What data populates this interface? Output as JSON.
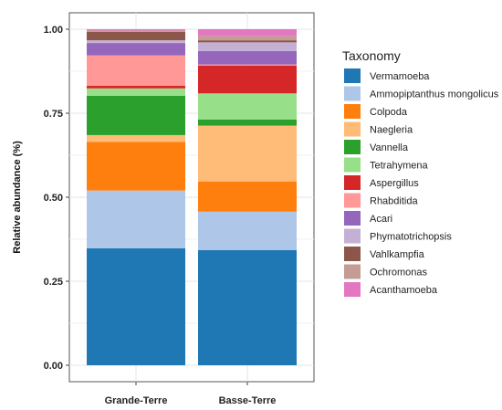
{
  "chart_data": {
    "type": "bar",
    "stacked": true,
    "categories": [
      "Grande-Terre",
      "Basse-Terre"
    ],
    "ylabel": "Relative abundance (%)",
    "xlabel": "",
    "ylim": [
      0,
      1.0
    ],
    "y_ticks": [
      "0.00",
      "0.25",
      "0.50",
      "0.75",
      "1.00"
    ],
    "y_tick_values": [
      0,
      0.25,
      0.5,
      0.75,
      1.0
    ],
    "grid": true,
    "legend": {
      "title": "Taxonomy",
      "position": "right"
    },
    "series": [
      {
        "name": "Vermamoeba",
        "color": "#1f77b4",
        "values": [
          0.348,
          0.343
        ]
      },
      {
        "name": "Ammopiptanthus mongolicus",
        "color": "#aec7e8",
        "values": [
          0.172,
          0.114
        ]
      },
      {
        "name": "Colpoda",
        "color": "#ff7f0e",
        "values": [
          0.145,
          0.09
        ]
      },
      {
        "name": "Naegleria",
        "color": "#ffbb78",
        "values": [
          0.02,
          0.166
        ]
      },
      {
        "name": "Vannella",
        "color": "#2ca02c",
        "values": [
          0.117,
          0.018
        ]
      },
      {
        "name": "Tetrahymena",
        "color": "#98df8a",
        "values": [
          0.022,
          0.078
        ]
      },
      {
        "name": "Aspergillus",
        "color": "#d62728",
        "values": [
          0.008,
          0.083
        ]
      },
      {
        "name": "Rhabditida",
        "color": "#ff9896",
        "values": [
          0.09,
          0.003
        ]
      },
      {
        "name": "Acari",
        "color": "#9467bd",
        "values": [
          0.037,
          0.04
        ]
      },
      {
        "name": "Phymatotrichopsis",
        "color": "#c5b0d5",
        "values": [
          0.008,
          0.026
        ]
      },
      {
        "name": "Vahlkampfia",
        "color": "#8c564b",
        "values": [
          0.025,
          0.006
        ]
      },
      {
        "name": "Ochromonas",
        "color": "#c49c94",
        "values": [
          0.004,
          0.013
        ]
      },
      {
        "name": "Acanthamoeba",
        "color": "#e377c2",
        "values": [
          0.004,
          0.02
        ]
      }
    ]
  }
}
